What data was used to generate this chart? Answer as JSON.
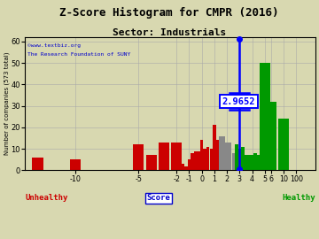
{
  "title": "Z-Score Histogram for CMPR (2016)",
  "subtitle": "Sector: Industrials",
  "xlabel_score": "Score",
  "ylabel": "Number of companies (573 total)",
  "watermark1": "©www.textbiz.org",
  "watermark2": "The Research Foundation of SUNY",
  "zscore": 2.9652,
  "zscore_label": "2.9652",
  "unhealthy_label": "Unhealthy",
  "healthy_label": "Healthy",
  "bg_color": "#d8d8b0",
  "grid_color": "#aaaaaa",
  "red": "#cc0000",
  "gray": "#888888",
  "green": "#009900",
  "blue_dark": "#0000cc",
  "title_fontsize": 9,
  "subtitle_fontsize": 8,
  "bars": [
    [
      -13.0,
      6,
      "#cc0000"
    ],
    [
      -10.0,
      5,
      "#cc0000"
    ],
    [
      -5.0,
      12,
      "#cc0000"
    ],
    [
      -4.0,
      7,
      "#cc0000"
    ],
    [
      -3.0,
      13,
      "#cc0000"
    ],
    [
      -2.0,
      13,
      "#cc0000"
    ],
    [
      -1.75,
      2,
      "#cc0000"
    ],
    [
      -1.5,
      3,
      "#cc0000"
    ],
    [
      -1.25,
      2,
      "#cc0000"
    ],
    [
      -1.0,
      5,
      "#cc0000"
    ],
    [
      -0.75,
      8,
      "#cc0000"
    ],
    [
      -0.5,
      9,
      "#cc0000"
    ],
    [
      -0.25,
      9,
      "#cc0000"
    ],
    [
      0.0,
      14,
      "#cc0000"
    ],
    [
      0.25,
      10,
      "#cc0000"
    ],
    [
      0.5,
      11,
      "#cc0000"
    ],
    [
      0.75,
      10,
      "#cc0000"
    ],
    [
      1.0,
      21,
      "#cc0000"
    ],
    [
      1.25,
      14,
      "#cc0000"
    ],
    [
      1.5,
      16,
      "#888888"
    ],
    [
      1.75,
      16,
      "#888888"
    ],
    [
      2.0,
      13,
      "#888888"
    ],
    [
      2.25,
      13,
      "#888888"
    ],
    [
      2.5,
      8,
      "#888888"
    ],
    [
      2.75,
      12,
      "#009900"
    ],
    [
      3.0,
      10,
      "#009900"
    ],
    [
      3.25,
      11,
      "#009900"
    ],
    [
      3.5,
      7,
      "#009900"
    ],
    [
      3.75,
      7,
      "#009900"
    ],
    [
      4.0,
      7,
      "#009900"
    ],
    [
      4.25,
      8,
      "#009900"
    ],
    [
      4.5,
      7,
      "#009900"
    ],
    [
      4.75,
      7,
      "#009900"
    ],
    [
      5.0,
      50,
      "#009900"
    ],
    [
      6.0,
      32,
      "#009900"
    ],
    [
      7.0,
      24,
      "#009900"
    ],
    [
      8.0,
      2,
      "#009900"
    ]
  ],
  "tick_score_vals": [
    -10,
    -5,
    -2,
    -1,
    0,
    1,
    2,
    3,
    4,
    5,
    6,
    10,
    100
  ],
  "tick_labels": [
    "-10",
    "-5",
    "-2",
    "-1",
    "0",
    "1",
    "2",
    "3",
    "4",
    "5",
    "6",
    "10",
    "100"
  ],
  "yticks": [
    0,
    10,
    20,
    30,
    40,
    50,
    60
  ],
  "ylim": [
    0,
    62
  ]
}
